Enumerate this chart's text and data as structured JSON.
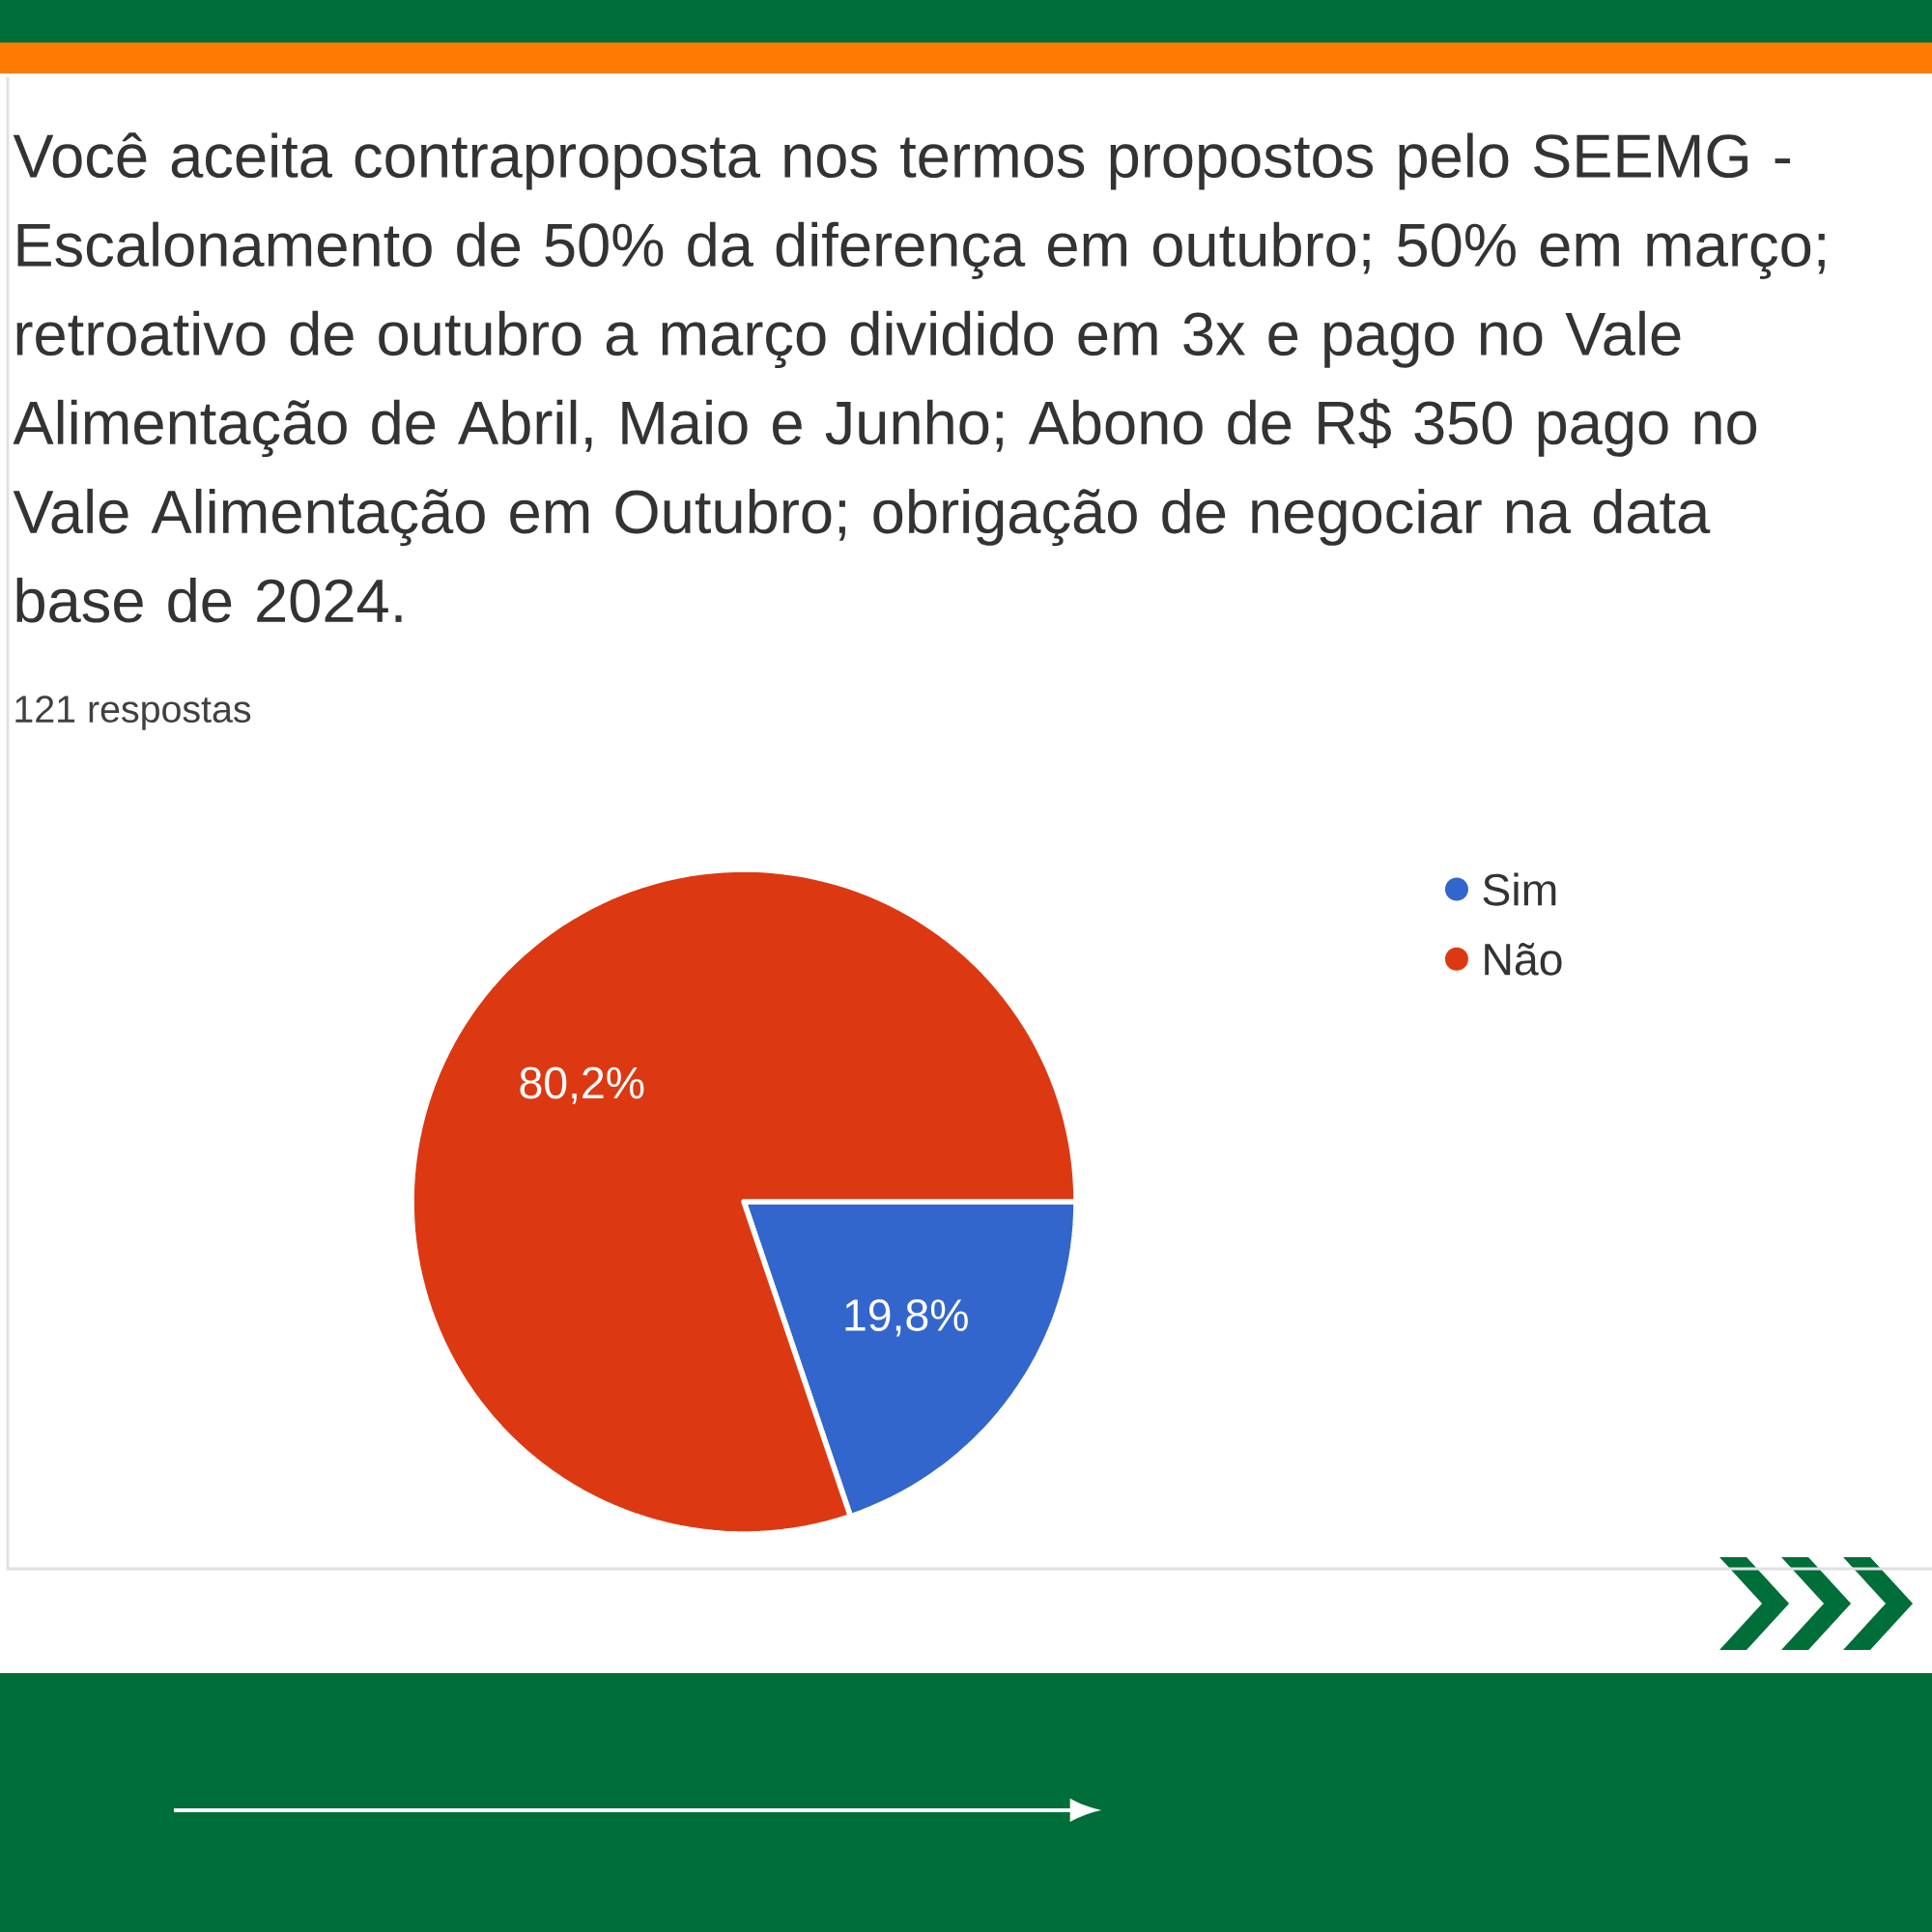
{
  "chart_data": {
    "type": "pie",
    "title": "Você aceita contraproposta nos termos propostos pelo SEEMG - Escalonamento de 50% da diferença em outubro; 50% em março; retroativo de outubro a março dividido em 3x e pago no Vale Alimentação de Abril, Maio e Junho; Abono de R$ 350 pago no Vale Alimentação em Outubro; obrigação de negociar na data base de 2024.",
    "subtitle": "121 respostas",
    "categories": [
      "Sim",
      "Não"
    ],
    "values": [
      19.8,
      80.2
    ],
    "colors": [
      "#3366cc",
      "#dc3912"
    ],
    "value_labels": [
      "19,8%",
      "80,2%"
    ],
    "legend": "top right"
  }
}
